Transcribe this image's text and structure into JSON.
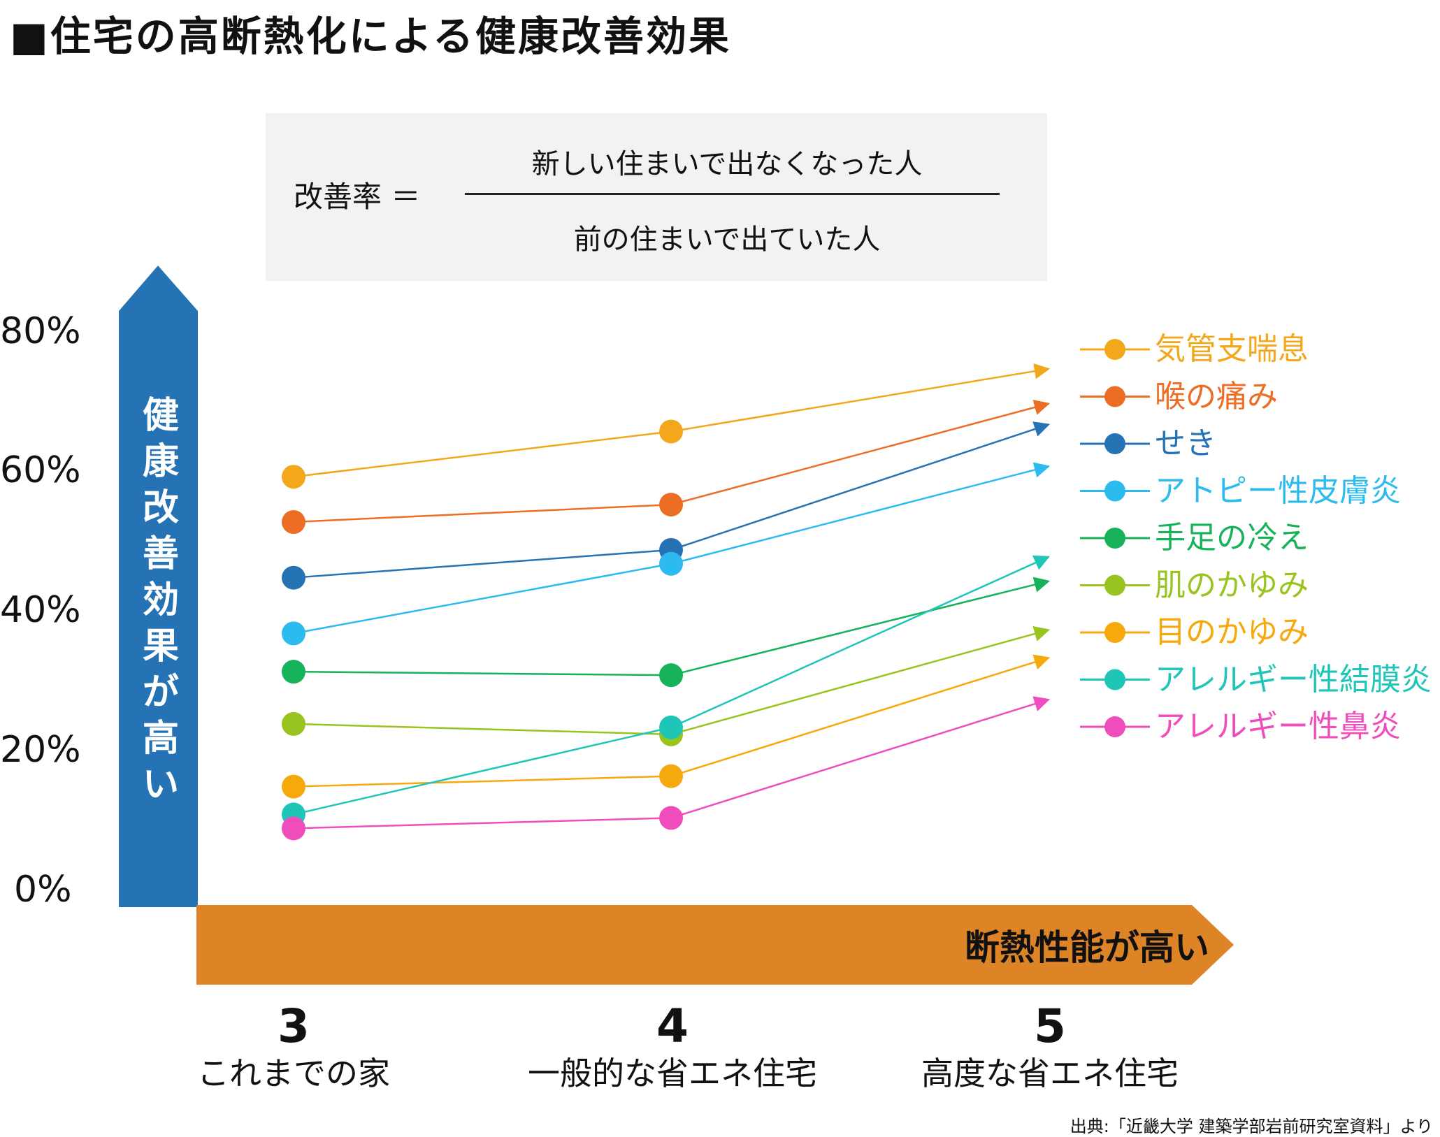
{
  "title": "■住宅の高断熱化による健康改善効果",
  "formula": {
    "lhs": "改善率 ＝",
    "numerator": "新しい住まいで出なくなった人",
    "denominator": "前の住まいで出ていた人"
  },
  "y_axis_title": "健康改善効果が高い",
  "x_axis_title": "断熱性能が高い",
  "x_levels": [
    {
      "num": "3",
      "name": "これまでの家"
    },
    {
      "num": "4",
      "name": "一般的な省エネ住宅"
    },
    {
      "num": "5",
      "name": "高度な省エネ住宅"
    }
  ],
  "source": "出典:「近畿大学 建築学部岩前研究室資料」より",
  "colors": {
    "y_arrow": "#2573b5",
    "x_arrow": "#dd8427",
    "formula_bg": "#f2f2f2"
  },
  "chart_data": {
    "type": "line",
    "x": [
      "3",
      "4",
      "5"
    ],
    "ylim": [
      0,
      80
    ],
    "yticks": [
      "0%",
      "20%",
      "40%",
      "60%",
      "80%"
    ],
    "grid": false,
    "legend_position": "right",
    "series": [
      {
        "name": "気管支喘息",
        "color": "#f2a81a",
        "values": [
          59.5,
          66,
          75
        ]
      },
      {
        "name": "喉の痛み",
        "color": "#ec6d24",
        "values": [
          53,
          55.5,
          70
        ]
      },
      {
        "name": "せき",
        "color": "#2573b5",
        "values": [
          45,
          49,
          67
        ]
      },
      {
        "name": "アトピー性皮膚炎",
        "color": "#2cbbef",
        "values": [
          37,
          47,
          61
        ]
      },
      {
        "name": "手足の冷え",
        "color": "#17b35a",
        "values": [
          31.5,
          31,
          44.5
        ]
      },
      {
        "name": "肌のかゆみ",
        "color": "#99c41f",
        "values": [
          24,
          22.5,
          37.5
        ]
      },
      {
        "name": "目のかゆみ",
        "color": "#f5a90c",
        "values": [
          15,
          16.5,
          33.5
        ]
      },
      {
        "name": "アレルギー性結膜炎",
        "color": "#1fc6b7",
        "values": [
          11,
          23.5,
          48
        ]
      },
      {
        "name": "アレルギー性鼻炎",
        "color": "#ef4dbb",
        "values": [
          9,
          10.5,
          27.5
        ]
      }
    ]
  }
}
